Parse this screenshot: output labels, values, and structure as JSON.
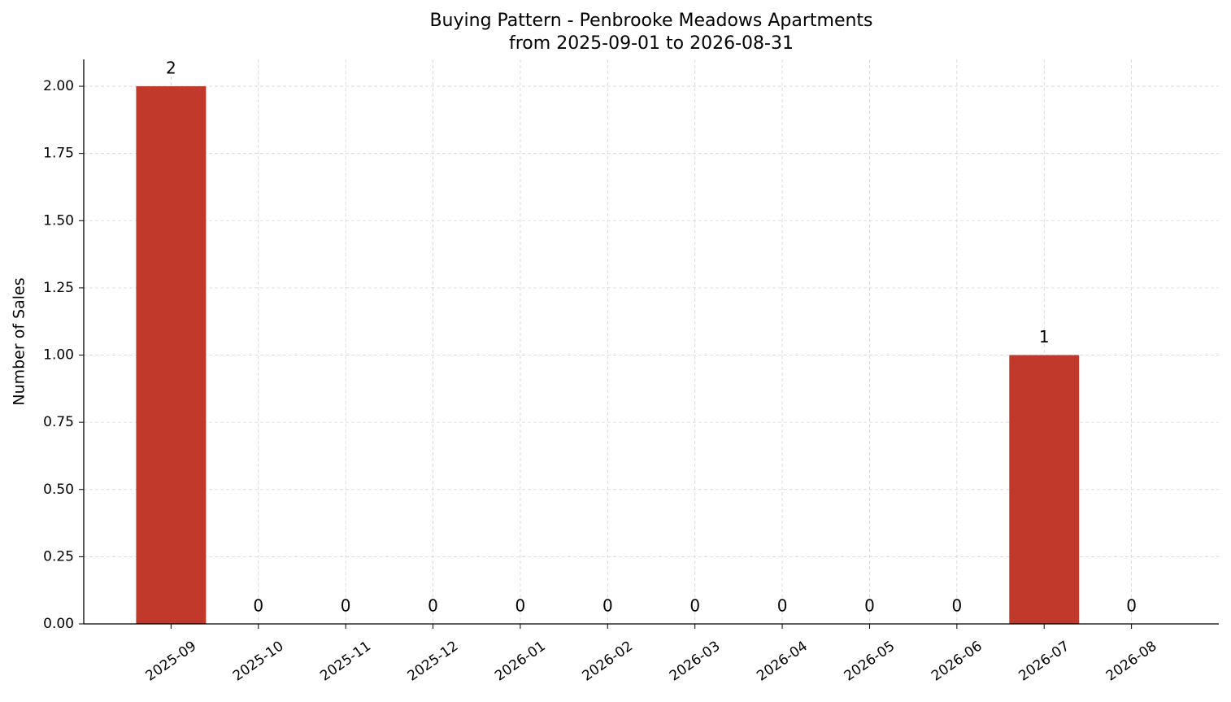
{
  "chart_data": {
    "type": "bar",
    "title": "Buying Pattern - Penbrooke Meadows Apartments",
    "subtitle": "from 2025-09-01 to 2026-08-31",
    "y_label": "Number of Sales",
    "categories": [
      "2025-09",
      "2025-10",
      "2025-11",
      "2025-12",
      "2026-01",
      "2026-02",
      "2026-03",
      "2026-04",
      "2026-05",
      "2026-06",
      "2026-07",
      "2026-08"
    ],
    "values": [
      2,
      0,
      0,
      0,
      0,
      0,
      0,
      0,
      0,
      0,
      1,
      0
    ],
    "color": "#c0392b",
    "ylim": [
      0,
      2.1
    ],
    "yticks": [
      {
        "value": 0,
        "label": "0.00"
      },
      {
        "value": 0.25,
        "label": "0.25"
      },
      {
        "value": 0.5,
        "label": "0.50"
      },
      {
        "value": 0.75,
        "label": "0.75"
      },
      {
        "value": 1,
        "label": "1.00"
      },
      {
        "value": 1.25,
        "label": "1.25"
      },
      {
        "value": 1.5,
        "label": "1.50"
      },
      {
        "value": 1.75,
        "label": "1.75"
      },
      {
        "value": 2,
        "label": "2.00"
      }
    ],
    "grid": true
  }
}
